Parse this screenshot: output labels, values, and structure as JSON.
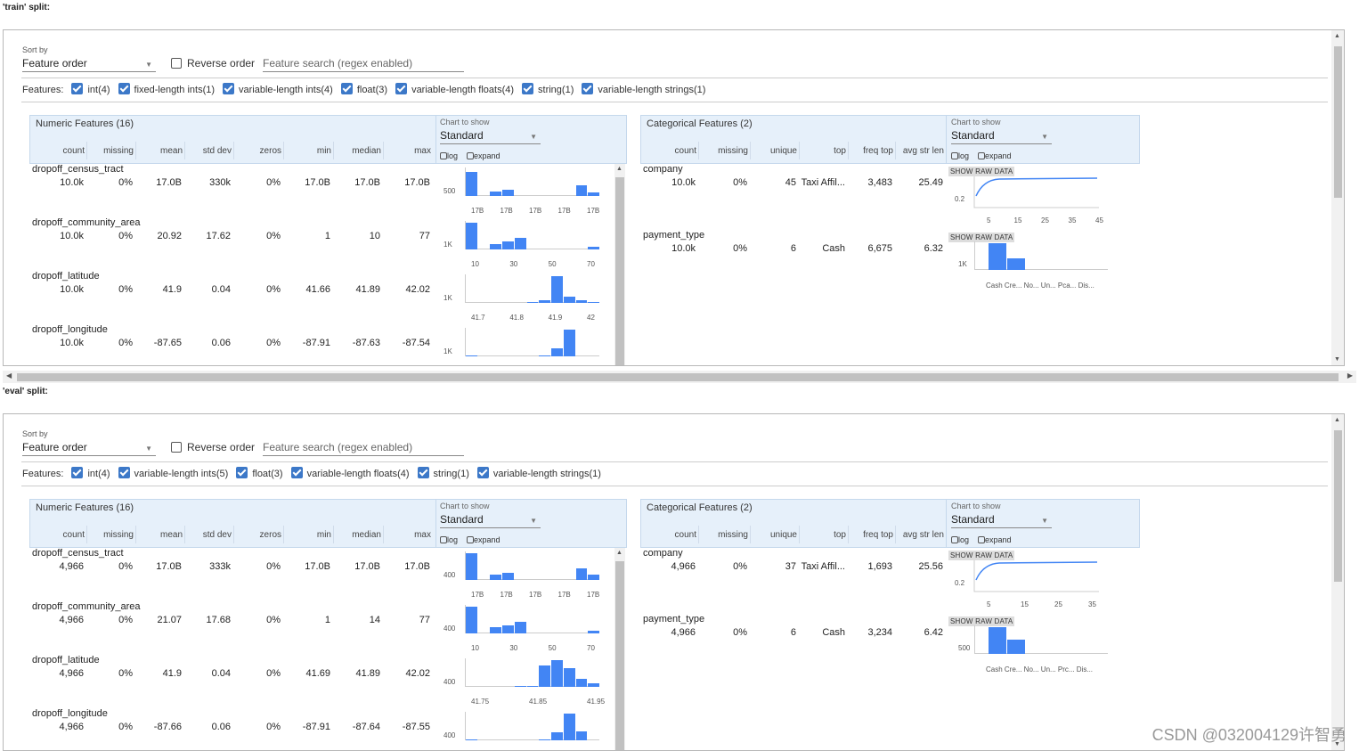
{
  "train_label": "'train' split:",
  "eval_label": "'eval' split:",
  "controls": {
    "sort_by": "Sort by",
    "sort_value": "Feature order",
    "reverse": "Reverse order",
    "search_placeholder": "Feature search (regex enabled)",
    "features_label": "Features:"
  },
  "train_feature_types": [
    "int(4)",
    "fixed-length ints(1)",
    "variable-length ints(4)",
    "float(3)",
    "variable-length floats(4)",
    "string(1)",
    "variable-length strings(1)"
  ],
  "eval_feature_types": [
    "int(4)",
    "variable-length ints(5)",
    "float(3)",
    "variable-length floats(4)",
    "string(1)",
    "variable-length strings(1)"
  ],
  "numeric": {
    "title": "Numeric Features (16)",
    "chart_to_show": "Chart to show",
    "chart_value": "Standard",
    "log": "log",
    "expand": "expand",
    "columns": [
      "count",
      "missing",
      "mean",
      "std dev",
      "zeros",
      "min",
      "median",
      "max"
    ]
  },
  "categorical": {
    "title": "Categorical Features (2)",
    "chart_to_show": "Chart to show",
    "chart_value": "Standard",
    "log": "log",
    "expand": "expand",
    "columns": [
      "count",
      "missing",
      "unique",
      "top",
      "freq top",
      "avg str len"
    ],
    "raw": "SHOW RAW DATA"
  },
  "train_numeric_rows": [
    {
      "name": "dropoff_census_tract",
      "vals": [
        "10.0k",
        "0%",
        "17.0B",
        "330k",
        "0%",
        "17.0B",
        "17.0B",
        "17.0B"
      ],
      "ylab": "500",
      "ticks": [
        "17B",
        "17B",
        "17B",
        "17B",
        "17B"
      ],
      "hist": [
        0.9,
        0,
        0.18,
        0.25,
        0,
        0,
        0,
        0,
        0,
        0.4,
        0.15
      ]
    },
    {
      "name": "dropoff_community_area",
      "vals": [
        "10.0k",
        "0%",
        "20.92",
        "17.62",
        "0%",
        "1",
        "10",
        "77"
      ],
      "ylab": "1K",
      "ticks": [
        "10",
        "30",
        "50",
        "70"
      ],
      "hist": [
        1,
        0,
        0.2,
        0.3,
        0.45,
        0,
        0,
        0,
        0,
        0,
        0.1
      ]
    },
    {
      "name": "dropoff_latitude",
      "vals": [
        "10.0k",
        "0%",
        "41.9",
        "0.04",
        "0%",
        "41.66",
        "41.89",
        "42.02"
      ],
      "ylab": "1K",
      "ticks": [
        "41.7",
        "41.8",
        "41.9",
        "42"
      ],
      "hist": [
        0,
        0,
        0,
        0,
        0,
        0.03,
        0.1,
        1,
        0.25,
        0.1,
        0.05
      ]
    },
    {
      "name": "dropoff_longitude",
      "vals": [
        "10.0k",
        "0%",
        "-87.65",
        "0.06",
        "0%",
        "-87.91",
        "-87.63",
        "-87.54"
      ],
      "ylab": "1K",
      "ticks": [],
      "hist": [
        0.05,
        0,
        0,
        0,
        0,
        0,
        0.05,
        0.3,
        1,
        0,
        0
      ]
    }
  ],
  "eval_numeric_rows": [
    {
      "name": "dropoff_census_tract",
      "vals": [
        "4,966",
        "0%",
        "17.0B",
        "333k",
        "0%",
        "17.0B",
        "17.0B",
        "17.0B"
      ],
      "ylab": "400",
      "ticks": [
        "17B",
        "17B",
        "17B",
        "17B",
        "17B"
      ],
      "hist": [
        1,
        0,
        0.2,
        0.28,
        0,
        0,
        0,
        0,
        0,
        0.45,
        0.2
      ]
    },
    {
      "name": "dropoff_community_area",
      "vals": [
        "4,966",
        "0%",
        "21.07",
        "17.68",
        "0%",
        "1",
        "14",
        "77"
      ],
      "ylab": "400",
      "ticks": [
        "10",
        "30",
        "50",
        "70"
      ],
      "hist": [
        1,
        0,
        0.25,
        0.3,
        0.45,
        0,
        0,
        0,
        0,
        0,
        0.1
      ]
    },
    {
      "name": "dropoff_latitude",
      "vals": [
        "4,966",
        "0%",
        "41.9",
        "0.04",
        "0%",
        "41.69",
        "41.89",
        "42.02"
      ],
      "ylab": "400",
      "ticks": [
        "41.75",
        "41.85",
        "41.95"
      ],
      "hist": [
        0,
        0,
        0,
        0,
        0.02,
        0.05,
        0.8,
        1,
        0.7,
        0.3,
        0.15
      ]
    },
    {
      "name": "dropoff_longitude",
      "vals": [
        "4,966",
        "0%",
        "-87.66",
        "0.06",
        "0%",
        "-87.91",
        "-87.64",
        "-87.55"
      ],
      "ylab": "400",
      "ticks": [],
      "hist": [
        0.05,
        0,
        0,
        0,
        0,
        0,
        0.05,
        0.3,
        1,
        0.35,
        0
      ]
    }
  ],
  "train_cat_rows": [
    {
      "name": "company",
      "vals": [
        "10.0k",
        "0%",
        "45",
        "Taxi Affil...",
        "3,483",
        "25.49"
      ],
      "kind": "curve",
      "ylab": "0.2",
      "ticks": [
        "5",
        "15",
        "25",
        "35",
        "45"
      ]
    },
    {
      "name": "payment_type",
      "vals": [
        "10.0k",
        "0%",
        "6",
        "Cash",
        "6,675",
        "6.32"
      ],
      "kind": "bars",
      "ylab": "1K",
      "ticks": [
        "Cash",
        "Cre...",
        "No...",
        "Un...",
        "Pca...",
        "Dis..."
      ],
      "hist": [
        1,
        0.45,
        0,
        0,
        0,
        0
      ]
    }
  ],
  "eval_cat_rows": [
    {
      "name": "company",
      "vals": [
        "4,966",
        "0%",
        "37",
        "Taxi Affil...",
        "1,693",
        "25.56"
      ],
      "kind": "curve",
      "ylab": "0.2",
      "ticks": [
        "5",
        "15",
        "25",
        "35"
      ]
    },
    {
      "name": "payment_type",
      "vals": [
        "4,966",
        "0%",
        "6",
        "Cash",
        "3,234",
        "6.42"
      ],
      "kind": "bars",
      "ylab": "500",
      "ticks": [
        "Cash",
        "Cre...",
        "No...",
        "Un...",
        "Prc...",
        "Dis..."
      ],
      "hist": [
        1,
        0.55,
        0,
        0,
        0,
        0
      ]
    }
  ],
  "watermark": "CSDN @032004129许智勇"
}
